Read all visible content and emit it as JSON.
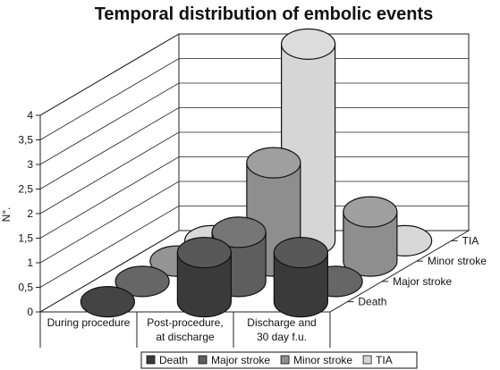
{
  "chart_data": {
    "type": "bar",
    "title": "Temporal distribution of embolic events",
    "ylabel": "N°.",
    "xlabel": "",
    "ylim": [
      0,
      4
    ],
    "yticks": [
      "0",
      "0,5",
      "1",
      "1,5",
      "2",
      "2,5",
      "3",
      "3,5",
      "4"
    ],
    "categories": [
      {
        "line1": "During procedure",
        "line2": ""
      },
      {
        "line1": "Post-procedure,",
        "line2": "at discharge"
      },
      {
        "line1": "Discharge and",
        "line2": "30 day f.u."
      }
    ],
    "series": [
      {
        "name": "Death",
        "values": [
          0,
          1,
          1
        ],
        "color": "#3a3a3a"
      },
      {
        "name": "Major stroke",
        "values": [
          0,
          1,
          0
        ],
        "color": "#5e5e5e"
      },
      {
        "name": "Minor stroke",
        "values": [
          0,
          2,
          1
        ],
        "color": "#8e8e8e"
      },
      {
        "name": "TIA",
        "values": [
          0,
          4,
          0
        ],
        "color": "#d6d6d6"
      }
    ],
    "grid": true,
    "legend": "bottom",
    "style": "3d-cylinder"
  }
}
